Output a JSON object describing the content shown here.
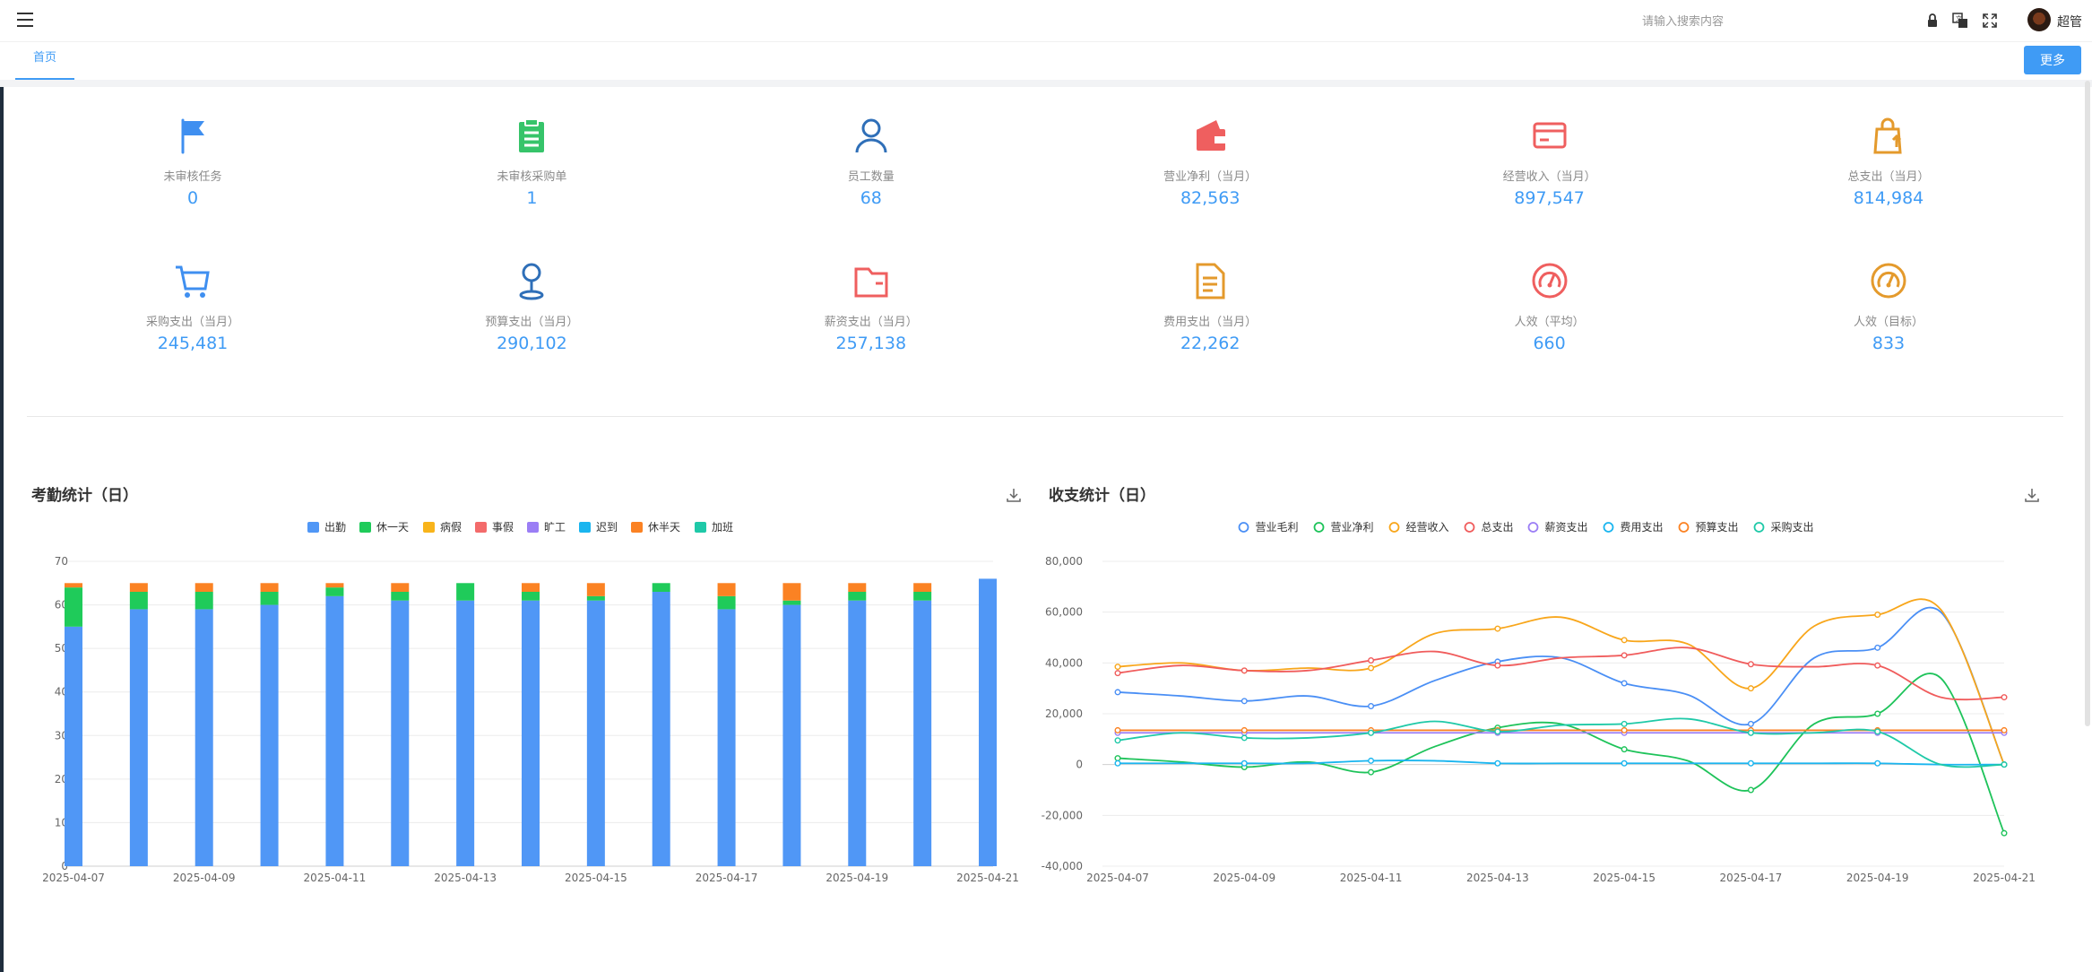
{
  "header": {
    "search_placeholder": "请输入搜索内容",
    "username": "超管"
  },
  "tabs": [
    {
      "label": "首页"
    }
  ],
  "more_button": "更多",
  "stats": [
    {
      "label": "未审核任务",
      "value": "0",
      "icon": "flag-icon",
      "color": "#3f8ff0"
    },
    {
      "label": "未审核采购单",
      "value": "1",
      "icon": "clipboard-icon",
      "color": "#36c46a"
    },
    {
      "label": "员工数量",
      "value": "68",
      "icon": "user-icon",
      "color": "#2f6fb8"
    },
    {
      "label": "营业净利（当月）",
      "value": "82,563",
      "icon": "wallet-icon",
      "color": "#ef5f5f"
    },
    {
      "label": "经营收入（当月）",
      "value": "897,547",
      "icon": "card-icon",
      "color": "#ef5f5f"
    },
    {
      "label": "总支出（当月）",
      "value": "814,984",
      "icon": "shopping-bag-icon",
      "color": "#e49a2c"
    },
    {
      "label": "采购支出（当月）",
      "value": "245,481",
      "icon": "cart-icon",
      "color": "#3f8ff0"
    },
    {
      "label": "预算支出（当月）",
      "value": "290,102",
      "icon": "pin-icon",
      "color": "#2f6fb8"
    },
    {
      "label": "薪资支出（当月）",
      "value": "257,138",
      "icon": "folder-icon",
      "color": "#ef5f5f"
    },
    {
      "label": "费用支出（当月）",
      "value": "22,262",
      "icon": "document-icon",
      "color": "#e49a2c"
    },
    {
      "label": "人效（平均）",
      "value": "660",
      "icon": "gauge-icon",
      "color": "#ef5f5f"
    },
    {
      "label": "人效（目标）",
      "value": "833",
      "icon": "gauge-icon",
      "color": "#e49a2c"
    }
  ],
  "attendance": {
    "title": "考勤统计（日）",
    "chart_data": {
      "type": "bar",
      "stacked": true,
      "categories": [
        "2025-04-07",
        "2025-04-08",
        "2025-04-09",
        "2025-04-10",
        "2025-04-11",
        "2025-04-12",
        "2025-04-13",
        "2025-04-14",
        "2025-04-15",
        "2025-04-16",
        "2025-04-17",
        "2025-04-18",
        "2025-04-19",
        "2025-04-20",
        "2025-04-21"
      ],
      "x_tick_labels": [
        "2025-04-07",
        "2025-04-09",
        "2025-04-11",
        "2025-04-13",
        "2025-04-15",
        "2025-04-17",
        "2025-04-19",
        "2025-04-21"
      ],
      "ylim": [
        0,
        70
      ],
      "y_ticks": [
        "0",
        "10",
        "20",
        "30",
        "40",
        "50",
        "60",
        "70"
      ],
      "legend_position": "top-center",
      "grid": true,
      "series": [
        {
          "name": "出勤",
          "color": "#5097f6",
          "values": [
            55,
            59,
            59,
            60,
            62,
            61,
            61,
            61,
            61,
            63,
            59,
            60,
            61,
            61,
            66
          ]
        },
        {
          "name": "休一天",
          "color": "#1fcb5a",
          "values": [
            9,
            4,
            4,
            3,
            2,
            2,
            4,
            2,
            1,
            2,
            3,
            1,
            2,
            2,
            0
          ]
        },
        {
          "name": "病假",
          "color": "#f8b41b",
          "values": [
            0,
            0,
            0,
            0,
            0,
            0,
            0,
            0,
            0,
            0,
            0,
            0,
            0,
            0,
            0
          ]
        },
        {
          "name": "事假",
          "color": "#f36b6b",
          "values": [
            0,
            0,
            0,
            0,
            0,
            0,
            0,
            0,
            0,
            0,
            0,
            0,
            0,
            0,
            0
          ]
        },
        {
          "name": "旷工",
          "color": "#9b7ef5",
          "values": [
            0,
            0,
            0,
            0,
            0,
            0,
            0,
            0,
            0,
            0,
            0,
            0,
            0,
            0,
            0
          ]
        },
        {
          "name": "迟到",
          "color": "#1ab5ef",
          "values": [
            0,
            0,
            0,
            0,
            0,
            0,
            0,
            0,
            0,
            0,
            0,
            0,
            0,
            0,
            0
          ]
        },
        {
          "name": "休半天",
          "color": "#fb8223",
          "values": [
            1,
            2,
            2,
            2,
            1,
            2,
            0,
            2,
            3,
            0,
            3,
            4,
            2,
            2,
            0
          ]
        },
        {
          "name": "加班",
          "color": "#1fc9a8",
          "values": [
            0,
            0,
            0,
            0,
            0,
            0,
            0,
            0,
            0,
            0,
            0,
            0,
            0,
            0,
            0
          ]
        }
      ]
    }
  },
  "finance": {
    "title": "收支统计（日）",
    "chart_data": {
      "type": "line",
      "smooth": true,
      "x": [
        "2025-04-07",
        "2025-04-08",
        "2025-04-09",
        "2025-04-10",
        "2025-04-11",
        "2025-04-12",
        "2025-04-13",
        "2025-04-14",
        "2025-04-15",
        "2025-04-16",
        "2025-04-17",
        "2025-04-18",
        "2025-04-19",
        "2025-04-20",
        "2025-04-21"
      ],
      "x_tick_labels": [
        "2025-04-07",
        "2025-04-09",
        "2025-04-11",
        "2025-04-13",
        "2025-04-15",
        "2025-04-17",
        "2025-04-19",
        "2025-04-21"
      ],
      "ylim": [
        -40000,
        80000
      ],
      "y_ticks": [
        "-40,000",
        "-20,000",
        "0",
        "20,000",
        "40,000",
        "60,000",
        "80,000"
      ],
      "legend_position": "top-center",
      "grid": true,
      "series": [
        {
          "name": "营业毛利",
          "color": "#4a8ff5",
          "values": [
            28500,
            27000,
            25000,
            27000,
            23000,
            33000,
            40500,
            42000,
            32000,
            27500,
            16000,
            42000,
            46000,
            60000,
            0
          ]
        },
        {
          "name": "营业净利",
          "color": "#1ec35a",
          "values": [
            2500,
            1000,
            -1000,
            1000,
            -3000,
            7000,
            14500,
            16000,
            6000,
            1500,
            -10000,
            16000,
            20000,
            34000,
            -27000
          ]
        },
        {
          "name": "经营收入",
          "color": "#f8a61b",
          "values": [
            38500,
            40000,
            37000,
            38000,
            38000,
            51500,
            53500,
            58000,
            49000,
            47500,
            30000,
            54500,
            59000,
            61000,
            0
          ]
        },
        {
          "name": "总支出",
          "color": "#f05c5c",
          "values": [
            36000,
            39000,
            37000,
            37000,
            41000,
            44500,
            39000,
            42000,
            43000,
            46000,
            39500,
            38500,
            39000,
            26500,
            26500
          ]
        },
        {
          "name": "薪资支出",
          "color": "#9b7ef5",
          "values": [
            12500,
            12500,
            12500,
            12500,
            12500,
            12500,
            12500,
            12500,
            12500,
            12500,
            12500,
            12500,
            12500,
            12500,
            12500
          ]
        },
        {
          "name": "费用支出",
          "color": "#1ab5ef",
          "values": [
            500,
            500,
            500,
            500,
            1500,
            1500,
            500,
            500,
            500,
            500,
            500,
            500,
            500,
            0,
            0
          ]
        },
        {
          "name": "预算支出",
          "color": "#fb8223",
          "values": [
            13500,
            13500,
            13500,
            13500,
            13500,
            13500,
            13500,
            13500,
            13500,
            13500,
            13500,
            13500,
            13500,
            13500,
            13500
          ]
        },
        {
          "name": "采购支出",
          "color": "#1fc9a8",
          "values": [
            9500,
            12500,
            10500,
            10500,
            12500,
            17000,
            13000,
            15500,
            16000,
            18000,
            12500,
            12500,
            13000,
            0,
            0
          ]
        }
      ]
    }
  }
}
